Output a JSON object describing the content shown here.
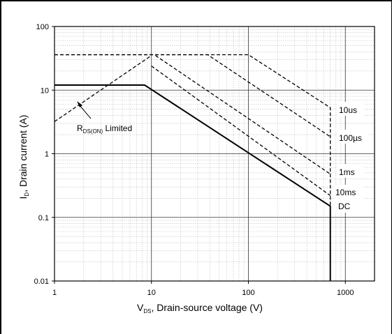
{
  "chart_data": {
    "type": "line",
    "title": "",
    "x_scale": "log",
    "y_scale": "log",
    "xlim": [
      1,
      2000
    ],
    "ylim": [
      0.01,
      100
    ],
    "x_ticks": [
      1,
      10,
      100,
      1000
    ],
    "y_ticks": [
      0.01,
      0.1,
      1,
      10,
      100
    ],
    "x_tick_labels": [
      "1",
      "10",
      "100",
      "1000"
    ],
    "y_tick_labels": [
      "0.01",
      "0.1",
      "1",
      "10",
      "100"
    ],
    "xlabel": {
      "main": "V",
      "sub": "DS",
      "rest": ", Drain-source voltage (V)"
    },
    "ylabel": {
      "main": "I",
      "sub": "D",
      "rest": ", Drain current (A)"
    },
    "grid": true,
    "series": [
      {
        "name": "DC",
        "style": "solid",
        "points": [
          [
            1,
            12
          ],
          [
            8.5,
            12
          ],
          [
            700,
            0.15
          ],
          [
            700,
            0.01
          ]
        ]
      },
      {
        "name": "10ms",
        "style": "dashed",
        "points": [
          [
            10,
            24
          ],
          [
            700,
            0.22
          ]
        ]
      },
      {
        "name": "1ms",
        "style": "dashed",
        "points": [
          [
            11,
            35
          ],
          [
            700,
            0.48
          ]
        ]
      },
      {
        "name": "100µs",
        "style": "dashed",
        "points": [
          [
            1,
            36
          ],
          [
            38,
            36
          ],
          [
            700,
            1.85
          ]
        ]
      },
      {
        "name": "10us",
        "style": "dashed",
        "points": [
          [
            1,
            36
          ],
          [
            100,
            36
          ],
          [
            700,
            5.3
          ],
          [
            700,
            0.01
          ]
        ]
      },
      {
        "name": "R_DS(ON) Limited",
        "style": "dashed",
        "points": [
          [
            1,
            3.2
          ],
          [
            10,
            35
          ]
        ]
      }
    ],
    "annotations": {
      "rdson_main": "R",
      "rdson_sub": "DS(ON)",
      "rdson_rest": " Limited",
      "label_10us": "10us",
      "label_100us": "100µs",
      "label_1ms": "1ms",
      "label_10ms": "10ms",
      "label_dc": "DC"
    }
  }
}
